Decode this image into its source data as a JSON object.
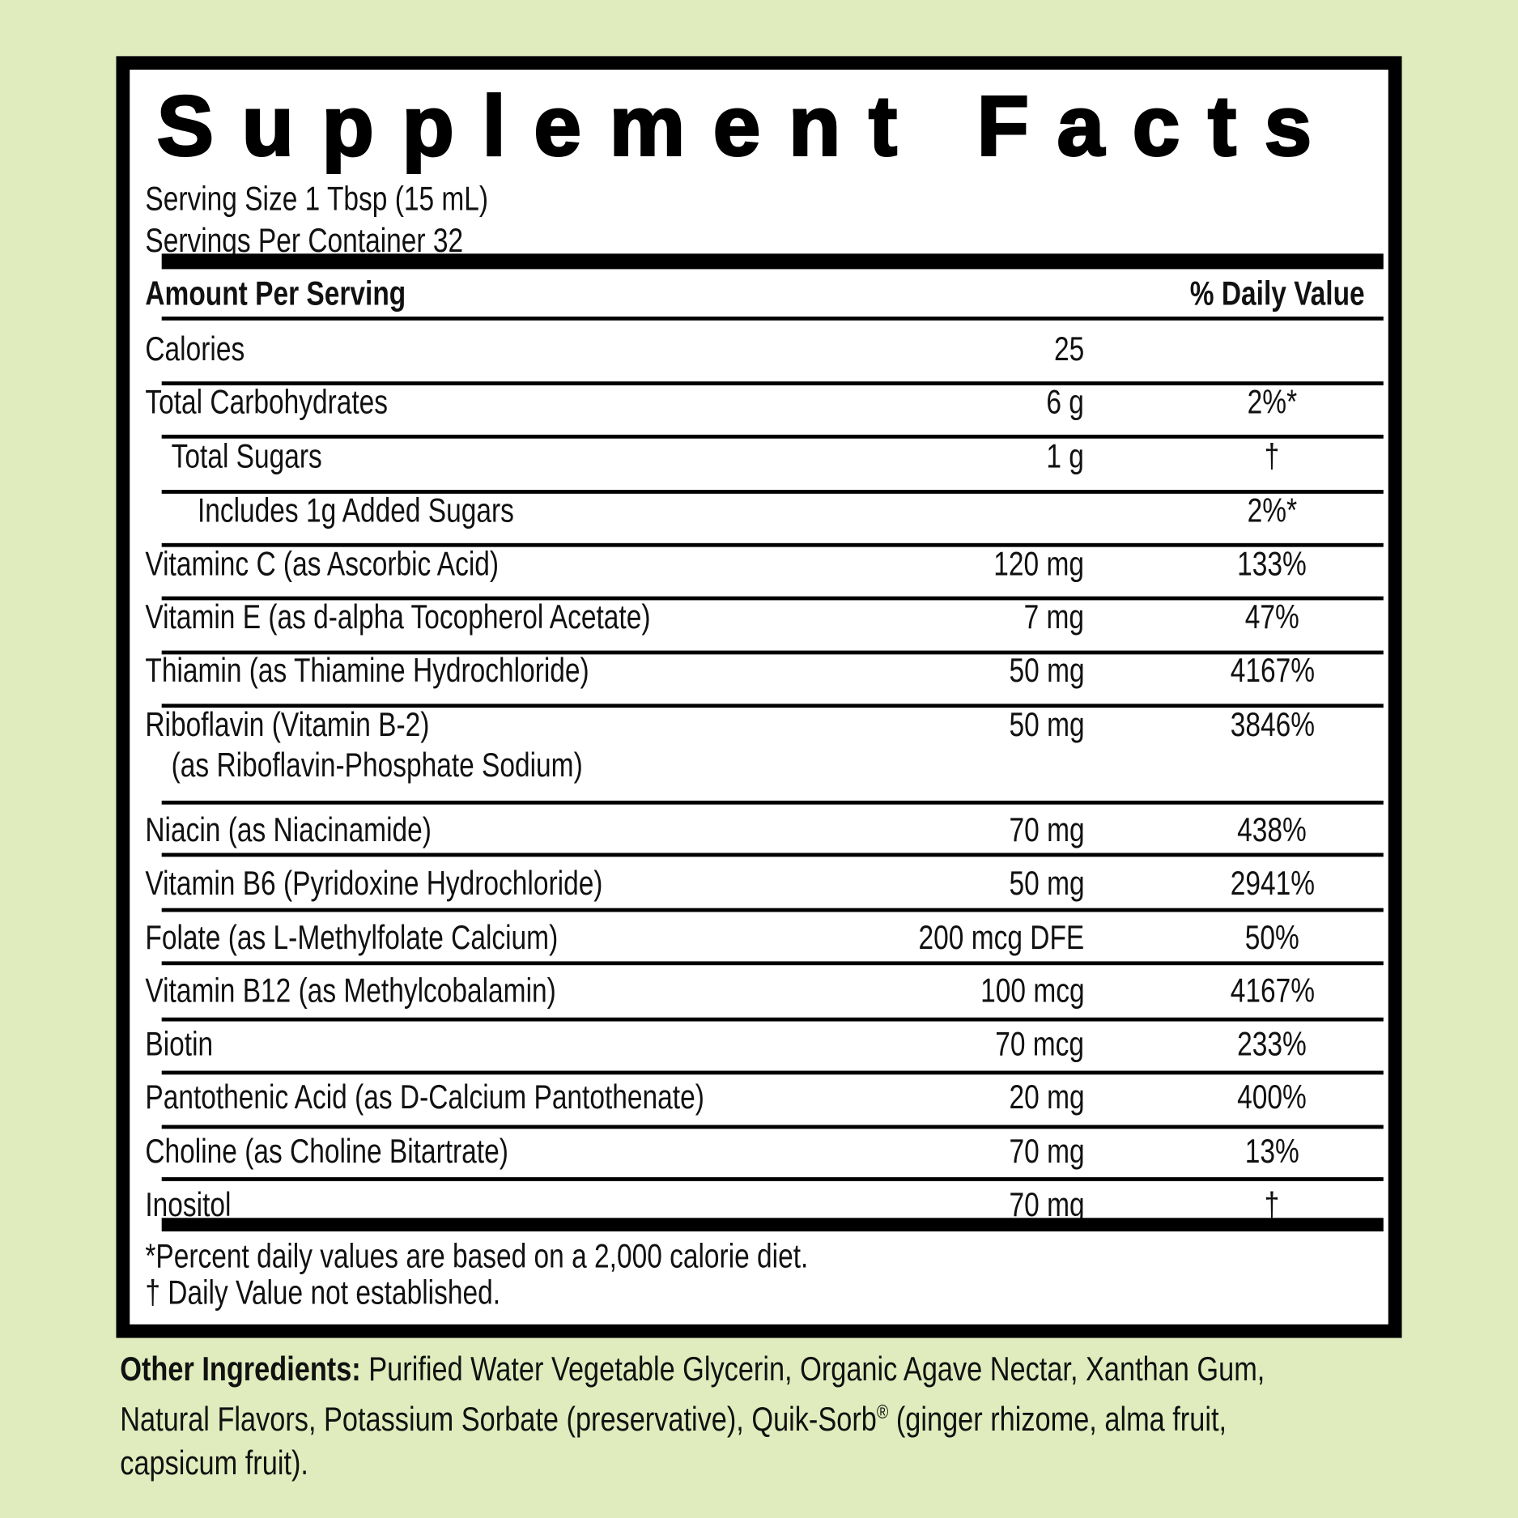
{
  "title": "Supplement Facts",
  "serving_size": "Serving Size 1 Tbsp (15 mL)",
  "servings_per_container": "Servings Per Container 32",
  "header": {
    "amount": "Amount Per Serving",
    "dv": "% Daily Value"
  },
  "rows": [
    {
      "label": "Calories",
      "amount": "25",
      "dv": ""
    },
    {
      "label": "Total Carbohydrates",
      "amount": "6 g",
      "dv": "2%*"
    },
    {
      "label": "Total Sugars",
      "amount": "1 g",
      "dv": "†",
      "indent": 1
    },
    {
      "label": "Includes 1g Added Sugars",
      "amount": "",
      "dv": "2%*",
      "indent": 2
    },
    {
      "label": "Vitaminc C (as Ascorbic Acid)",
      "amount": "120 mg",
      "dv": "133%"
    },
    {
      "label": "Vitamin E (as d-alpha Tocopherol Acetate)",
      "amount": "7 mg",
      "dv": "47%"
    },
    {
      "label": "Thiamin (as Thiamine Hydrochloride)",
      "amount": "50 mg",
      "dv": "4167%"
    },
    {
      "label": "Riboflavin (Vitamin B-2)",
      "label2": "(as Riboflavin-Phosphate Sodium)",
      "amount": "50 mg",
      "dv": "3846%"
    },
    {
      "label": "Niacin (as Niacinamide)",
      "amount": "70 mg",
      "dv": "438%"
    },
    {
      "label": "Vitamin B6 (Pyridoxine Hydrochloride)",
      "amount": "50 mg",
      "dv": "2941%"
    },
    {
      "label": "Folate (as L-Methylfolate Calcium)",
      "amount": "200 mcg DFE",
      "dv": "50%"
    },
    {
      "label": "Vitamin B12 (as Methylcobalamin)",
      "amount": "100 mcg",
      "dv": "4167%"
    },
    {
      "label": "Biotin",
      "amount": "70 mcg",
      "dv": "233%"
    },
    {
      "label": "Pantothenic Acid (as D-Calcium Pantothenate)",
      "amount": "20 mg",
      "dv": "400%"
    },
    {
      "label": "Choline (as Choline Bitartrate)",
      "amount": "70 mg",
      "dv": "13%"
    },
    {
      "label": "Inositol",
      "amount": "70 mg",
      "dv": "†"
    }
  ],
  "footnotes": [
    "*Percent daily values are based on a 2,000 calorie diet.",
    "† Daily Value not established."
  ],
  "other_ingredients": {
    "label": "Other Ingredients:",
    "text_before": " Purified Water Vegetable Glycerin, Organic Agave Nectar, Xanthan Gum, Natural Flavors, Potassium Sorbate (preservative), Quik-Sorb",
    "registered": "®",
    "text_after": " (ginger rhizome, alma fruit, capsicum fruit)."
  },
  "colors": {
    "background": "#e0ecbd",
    "border": "#000000",
    "panel": "#ffffff"
  }
}
